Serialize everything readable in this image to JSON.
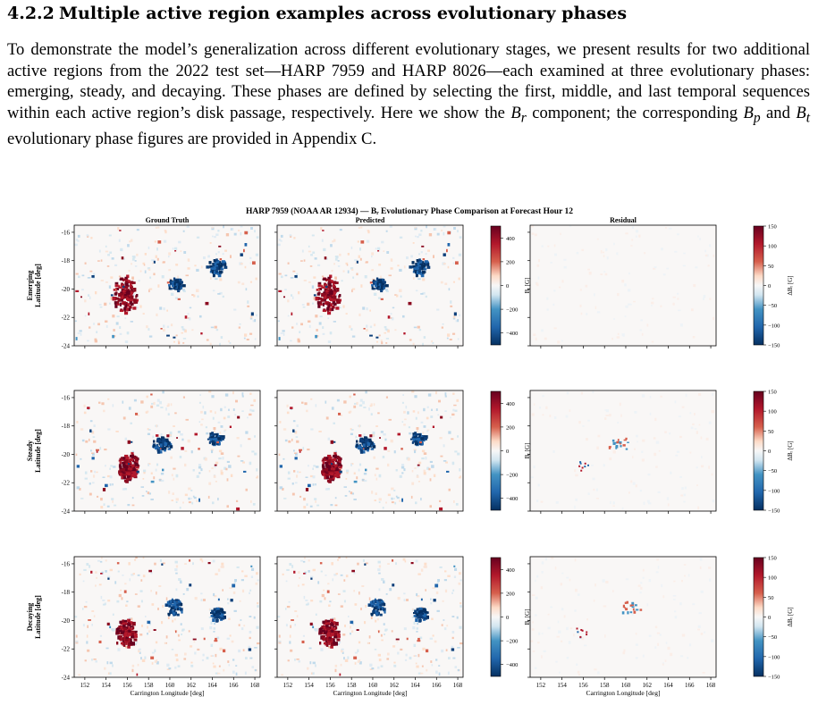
{
  "section": {
    "number": "4.2.2",
    "title": "Multiple active region examples across evolutionary phases"
  },
  "paragraph": {
    "text_1": "To demonstrate the model’s generalization across different evolutionary stages, we present results for two additional active regions from the 2022 test set—HARP 7959 and HARP 8026—each examined at three evolutionary phases: emerging, steady, and decaying. These phases are defined by selecting the first, middle, and last temporal sequences within each active region’s disk passage, respectively. Here we show the ",
    "br_symbol": "B",
    "br_sub": "r",
    "text_2": " component; the corresponding ",
    "bp_symbol": "B",
    "bp_sub": "p",
    "text_3": " and ",
    "bt_symbol": "B",
    "bt_sub": "t",
    "text_4": " evolutionary phase figures are provided in Appendix C."
  },
  "figure": {
    "title": "HARP 7959 (NOAA AR 12934) — Bᵣ Evolutionary Phase Comparison at Forecast Hour 12",
    "columns": [
      "Ground Truth",
      "Predicted",
      "Residual"
    ],
    "rows": [
      {
        "phase": "Emerging",
        "ylabel": "Latitude [deg]"
      },
      {
        "phase": "Steady",
        "ylabel": "Latitude [deg]"
      },
      {
        "phase": "Decaying",
        "ylabel": "Latitude [deg]"
      }
    ],
    "xlabel": "Carrington Longitude [deg]",
    "x_ticks": [
      "152",
      "154",
      "156",
      "158",
      "160",
      "162",
      "164",
      "166",
      "168"
    ],
    "y_ticks": [
      "-16",
      "-18",
      "-20",
      "-22",
      "-24"
    ],
    "colorbar_main": {
      "label": "Bᵣ [G]",
      "ticks": [
        "400",
        "200",
        "0",
        "−200",
        "−400"
      ]
    },
    "colorbar_residual": {
      "label": "ΔBᵣ [G]",
      "ticks": [
        "150",
        "100",
        "50",
        "0",
        "−50",
        "−100",
        "−150"
      ]
    },
    "colors": {
      "positive": "#8b0a1f",
      "negative": "#0d3f7a",
      "neutral": "#f7f7f7"
    }
  },
  "chart_data": {
    "type": "heatmap",
    "title": "HARP 7959 (NOAA AR 12934) — Bᵣ Evolutionary Phase Comparison at Forecast Hour 12",
    "xlabel": "Carrington Longitude [deg]",
    "ylabel": "Latitude [deg]",
    "xlim": [
      151,
      168.5
    ],
    "ylim": [
      -24,
      -15.5
    ],
    "colorscale": "diverging red-blue",
    "main_range": [
      -500,
      500
    ],
    "residual_range": [
      -150,
      150
    ],
    "features": [
      {
        "phase": "Emerging",
        "positive_center": [
          155.7,
          -20.3
        ],
        "negative_centers": [
          [
            164.3,
            -18.4
          ],
          [
            160.5,
            -19.6
          ]
        ]
      },
      {
        "phase": "Steady",
        "positive_center": [
          156.0,
          -20.8
        ],
        "negative_centers": [
          [
            159.2,
            -19.2
          ],
          [
            164.2,
            -18.8
          ]
        ]
      },
      {
        "phase": "Decaying",
        "positive_center": [
          155.8,
          -20.8
        ],
        "negative_centers": [
          [
            160.3,
            -19.0
          ],
          [
            164.4,
            -19.5
          ]
        ]
      }
    ]
  }
}
